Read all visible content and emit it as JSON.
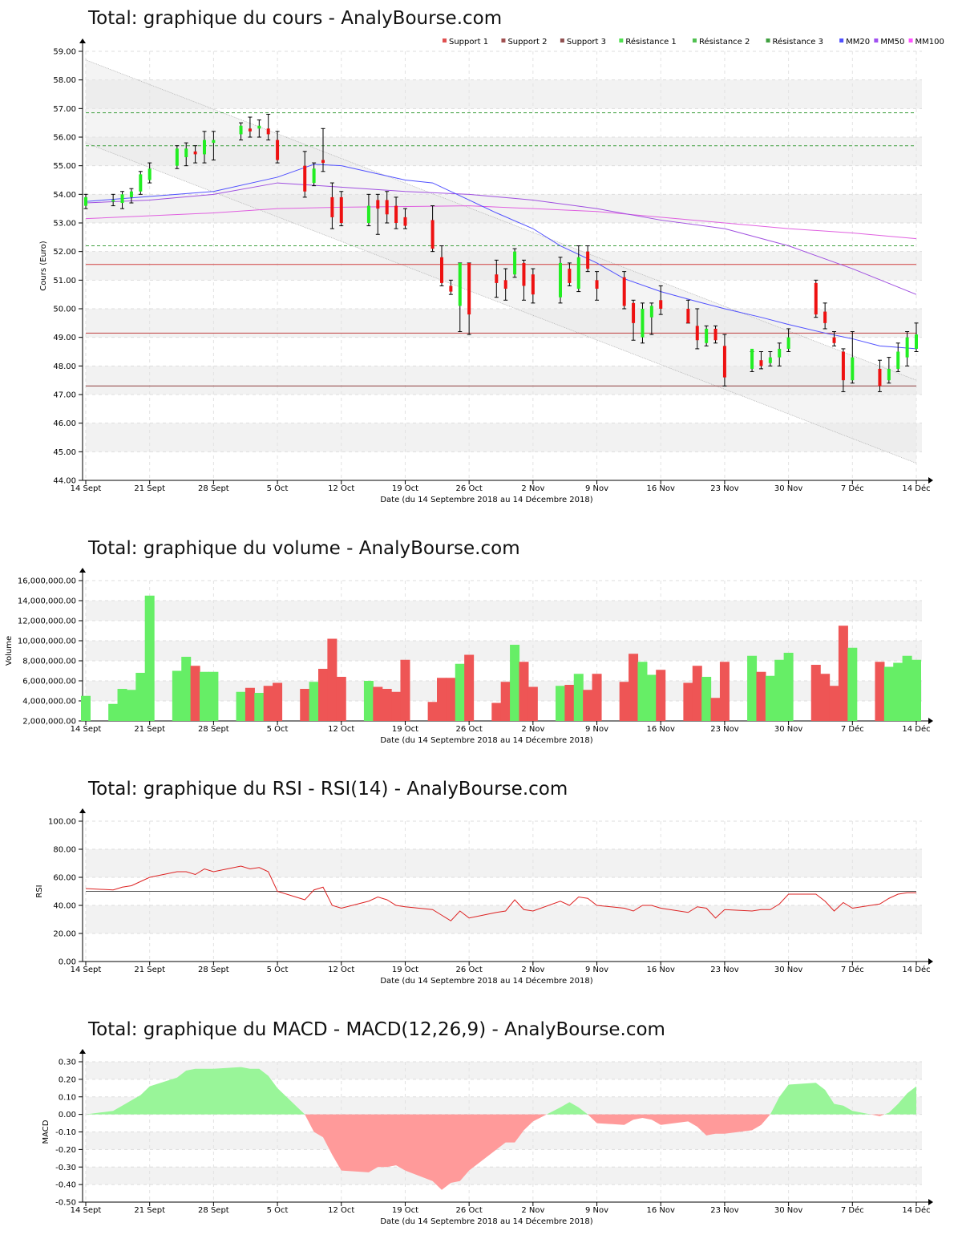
{
  "x_axis": {
    "ticks": [
      "14 Sept",
      "21 Sept",
      "28 Sept",
      "5 Oct",
      "12 Oct",
      "19 Oct",
      "26 Oct",
      "2 Nov",
      "9 Nov",
      "16 Nov",
      "23 Nov",
      "30 Nov",
      "7 Déc",
      "14 Déc"
    ],
    "label": "Date (du 14 Septembre 2018 au 14 Décembre 2018)",
    "day_range": [
      0,
      91
    ],
    "tick_days": [
      0,
      7,
      14,
      21,
      28,
      35,
      42,
      49,
      56,
      63,
      70,
      77,
      84,
      91
    ],
    "trading_days": [
      0,
      3,
      4,
      5,
      6,
      7,
      10,
      11,
      12,
      13,
      14,
      17,
      18,
      19,
      20,
      21,
      24,
      25,
      26,
      27,
      28,
      31,
      32,
      33,
      34,
      35,
      38,
      39,
      40,
      41,
      42,
      45,
      46,
      47,
      48,
      49,
      52,
      53,
      54,
      55,
      56,
      59,
      60,
      61,
      62,
      63,
      66,
      67,
      68,
      69,
      70,
      73,
      74,
      75,
      76,
      77,
      80,
      81,
      82,
      83,
      84,
      87,
      88,
      89,
      90,
      91
    ]
  },
  "charts": {
    "price": {
      "title": "Total: graphique du cours - AnalyBourse.com",
      "legend": [
        {
          "label": "Support 1",
          "color": "#e05050"
        },
        {
          "label": "Support 2",
          "color": "#a05050"
        },
        {
          "label": "Support 3",
          "color": "#905050"
        },
        {
          "label": "Résistance 1",
          "color": "#50e050"
        },
        {
          "label": "Résistance 2",
          "color": "#50c050"
        },
        {
          "label": "Résistance 3",
          "color": "#40a040"
        },
        {
          "label": "MM20",
          "color": "#5050ff"
        },
        {
          "label": "MM50",
          "color": "#a050f0"
        },
        {
          "label": "MM100",
          "color": "#ff50ff"
        }
      ]
    },
    "volume": {
      "title": "Total: graphique du volume - AnalyBourse.com"
    },
    "rsi": {
      "title": "Total: graphique du RSI - RSI(14) - AnalyBourse.com"
    },
    "macd": {
      "title": "Total: graphique du MACD - MACD(12,26,9) - AnalyBourse.com"
    }
  },
  "chart_data": [
    {
      "type": "candlestick",
      "title": "Total: graphique du cours - AnalyBourse.com",
      "ylabel": "Cours (Euro)",
      "xlabel": "Date (du 14 Septembre 2018 au 14 Décembre 2018)",
      "ylim": [
        44,
        59
      ],
      "yticks": [
        "44.00",
        "45.00",
        "46.00",
        "47.00",
        "48.00",
        "49.00",
        "50.00",
        "51.00",
        "52.00",
        "53.00",
        "54.00",
        "55.00",
        "56.00",
        "57.00",
        "58.00",
        "59.00"
      ],
      "ohlc": [
        [
          53.6,
          54.0,
          53.5,
          53.9
        ],
        [
          53.8,
          54.0,
          53.6,
          53.8
        ],
        [
          53.7,
          54.1,
          53.5,
          54.0
        ],
        [
          53.9,
          54.2,
          53.7,
          54.1
        ],
        [
          54.1,
          54.8,
          54.0,
          54.7
        ],
        [
          54.5,
          55.1,
          54.4,
          54.9
        ],
        [
          55.0,
          55.7,
          54.9,
          55.6
        ],
        [
          55.3,
          55.8,
          55.0,
          55.6
        ],
        [
          55.5,
          55.7,
          55.1,
          55.4
        ],
        [
          55.4,
          56.2,
          55.1,
          55.9
        ],
        [
          55.8,
          56.2,
          55.2,
          55.9
        ],
        [
          56.1,
          56.5,
          55.9,
          56.4
        ],
        [
          56.3,
          56.7,
          56.0,
          56.2
        ],
        [
          56.3,
          56.6,
          56.0,
          56.4
        ],
        [
          56.3,
          56.8,
          55.9,
          56.1
        ],
        [
          55.9,
          56.2,
          55.1,
          55.2
        ],
        [
          55.0,
          55.5,
          53.9,
          54.1
        ],
        [
          54.4,
          55.1,
          54.3,
          54.9
        ],
        [
          55.2,
          56.3,
          54.8,
          55.1
        ],
        [
          53.9,
          54.4,
          52.8,
          53.2
        ],
        [
          53.9,
          54.1,
          52.9,
          53.0
        ],
        [
          53.0,
          54.0,
          52.9,
          53.6
        ],
        [
          53.8,
          54.0,
          52.6,
          53.5
        ],
        [
          53.8,
          54.1,
          53.0,
          53.3
        ],
        [
          53.6,
          53.9,
          52.8,
          53.0
        ],
        [
          53.2,
          53.5,
          52.8,
          52.9
        ],
        [
          53.1,
          53.6,
          52.0,
          52.1
        ],
        [
          51.8,
          52.2,
          50.8,
          50.9
        ],
        [
          50.8,
          51.0,
          50.5,
          50.6
        ],
        [
          50.1,
          51.6,
          49.2,
          51.6
        ],
        [
          51.6,
          51.6,
          49.1,
          49.8
        ],
        [
          51.2,
          51.7,
          50.4,
          50.9
        ],
        [
          51.0,
          51.4,
          50.3,
          50.7
        ],
        [
          51.2,
          52.1,
          51.1,
          52.0
        ],
        [
          51.6,
          51.7,
          50.3,
          50.8
        ],
        [
          51.2,
          51.4,
          50.2,
          50.5
        ],
        [
          50.4,
          51.8,
          50.2,
          51.6
        ],
        [
          51.4,
          51.6,
          50.8,
          50.9
        ],
        [
          50.7,
          52.2,
          50.6,
          51.8
        ],
        [
          52.0,
          52.2,
          51.3,
          51.4
        ],
        [
          51.0,
          51.3,
          50.3,
          50.7
        ],
        [
          51.1,
          51.3,
          50.0,
          50.1
        ],
        [
          50.2,
          50.3,
          48.9,
          49.5
        ],
        [
          49.0,
          50.2,
          48.8,
          50.0
        ],
        [
          49.7,
          50.2,
          49.1,
          50.1
        ],
        [
          50.3,
          50.8,
          49.8,
          50.0
        ],
        [
          50.0,
          50.3,
          49.5,
          49.5
        ],
        [
          49.4,
          50.0,
          48.6,
          48.9
        ],
        [
          48.8,
          49.4,
          48.7,
          49.3
        ],
        [
          49.3,
          49.4,
          48.8,
          48.9
        ],
        [
          48.7,
          49.1,
          47.3,
          47.6
        ],
        [
          47.9,
          48.5,
          47.8,
          48.6
        ],
        [
          48.2,
          48.5,
          47.9,
          48.0
        ],
        [
          48.1,
          48.5,
          48.0,
          48.3
        ],
        [
          48.3,
          48.8,
          48.0,
          48.6
        ],
        [
          48.6,
          49.3,
          48.5,
          49.0
        ],
        [
          50.9,
          51.0,
          49.7,
          49.8
        ],
        [
          49.9,
          50.2,
          49.3,
          49.5
        ],
        [
          49.0,
          49.2,
          48.7,
          48.8
        ],
        [
          48.5,
          48.6,
          47.1,
          47.5
        ],
        [
          47.5,
          49.2,
          47.4,
          48.3
        ],
        [
          47.9,
          48.2,
          47.1,
          47.3
        ],
        [
          47.5,
          48.3,
          47.4,
          47.9
        ],
        [
          47.9,
          48.8,
          47.8,
          48.5
        ],
        [
          48.3,
          49.2,
          48.0,
          49.0
        ],
        [
          48.6,
          49.5,
          48.5,
          49.1
        ]
      ],
      "mm20": [
        [
          0,
          53.75
        ],
        [
          14,
          54.1
        ],
        [
          21,
          54.6
        ],
        [
          25,
          55.05
        ],
        [
          28,
          55.0
        ],
        [
          35,
          54.5
        ],
        [
          38,
          54.4
        ],
        [
          42,
          53.8
        ],
        [
          45,
          53.35
        ],
        [
          49,
          52.8
        ],
        [
          52,
          52.2
        ],
        [
          56,
          51.6
        ],
        [
          59,
          51.05
        ],
        [
          63,
          50.6
        ],
        [
          67,
          50.25
        ],
        [
          70,
          50.0
        ],
        [
          74,
          49.7
        ],
        [
          77,
          49.45
        ],
        [
          81,
          49.15
        ],
        [
          84,
          48.95
        ],
        [
          87,
          48.7
        ],
        [
          91,
          48.6
        ]
      ],
      "mm50": [
        [
          0,
          53.7
        ],
        [
          7,
          53.8
        ],
        [
          14,
          54.0
        ],
        [
          21,
          54.4
        ],
        [
          28,
          54.25
        ],
        [
          35,
          54.1
        ],
        [
          42,
          54.0
        ],
        [
          49,
          53.8
        ],
        [
          56,
          53.5
        ],
        [
          63,
          53.1
        ],
        [
          70,
          52.8
        ],
        [
          77,
          52.2
        ],
        [
          84,
          51.4
        ],
        [
          91,
          50.5
        ]
      ],
      "mm100": [
        [
          0,
          53.15
        ],
        [
          14,
          53.35
        ],
        [
          21,
          53.5
        ],
        [
          28,
          53.55
        ],
        [
          42,
          53.6
        ],
        [
          49,
          53.5
        ],
        [
          56,
          53.4
        ],
        [
          63,
          53.2
        ],
        [
          70,
          53.0
        ],
        [
          77,
          52.8
        ],
        [
          84,
          52.65
        ],
        [
          91,
          52.45
        ]
      ],
      "support_lines": [
        51.55,
        49.15,
        47.3
      ],
      "resistance_lines": [
        56.85,
        55.7,
        52.2
      ],
      "channel": {
        "upper": [
          [
            0,
            58.7
          ],
          [
            91,
            47.5
          ]
        ],
        "lower": [
          [
            0,
            55.8
          ],
          [
            91,
            44.6
          ]
        ]
      }
    },
    {
      "type": "bar",
      "title": "Total: graphique du volume - AnalyBourse.com",
      "ylabel": "Volume",
      "xlabel": "Date (du 14 Septembre 2018 au 14 Décembre 2018)",
      "ylim": [
        2000000,
        16000000
      ],
      "yticks": [
        "2,000,000.00",
        "4,000,000.00",
        "6,000,000.00",
        "8,000,000.00",
        "10,000,000.00",
        "12,000,000.00",
        "14,000,000.00",
        "16,000,000.00"
      ],
      "values": [
        4500000,
        3700000,
        5200000,
        5100000,
        6800000,
        14500000,
        7000000,
        8400000,
        7500000,
        6900000,
        6900000,
        4900000,
        5300000,
        4800000,
        5500000,
        5800000,
        5200000,
        5900000,
        7200000,
        10200000,
        6400000,
        6000000,
        5400000,
        5200000,
        4900000,
        8100000,
        3900000,
        6300000,
        6300000,
        7700000,
        8600000,
        3800000,
        5900000,
        9600000,
        7900000,
        5400000,
        5500000,
        5600000,
        6700000,
        5100000,
        6700000,
        5900000,
        8700000,
        7900000,
        6600000,
        7100000,
        5800000,
        7500000,
        6400000,
        4300000,
        7900000,
        8500000,
        6900000,
        6500000,
        8100000,
        8800000,
        7600000,
        6700000,
        5500000,
        11500000,
        9300000,
        7900000,
        7400000,
        7800000,
        8500000,
        8100000
      ]
    },
    {
      "type": "line",
      "title": "Total: graphique du RSI - RSI(14) - AnalyBourse.com",
      "ylabel": "RSI",
      "xlabel": "Date (du 14 Septembre 2018 au 14 Décembre 2018)",
      "ylim": [
        0,
        100
      ],
      "yticks": [
        "0.00",
        "20.00",
        "40.00",
        "60.00",
        "80.00",
        "100.00"
      ],
      "reference_line": 50,
      "values": [
        52,
        51,
        53,
        54,
        57,
        60,
        64,
        64,
        62,
        66,
        64,
        68,
        66,
        67,
        64,
        50,
        44,
        51,
        53,
        40,
        38,
        43,
        46,
        44,
        40,
        39,
        37,
        33,
        29,
        36,
        31,
        35,
        36,
        44,
        37,
        36,
        43,
        40,
        46,
        45,
        40,
        38,
        36,
        40,
        40,
        38,
        35,
        39,
        38,
        31,
        37,
        36,
        37,
        37,
        41,
        48,
        48,
        43,
        36,
        42,
        38,
        41,
        45,
        48,
        49,
        49
      ]
    },
    {
      "type": "area",
      "title": "Total: graphique du MACD - MACD(12,26,9) - AnalyBourse.com",
      "ylabel": "MACD",
      "xlabel": "Date (du 14 Septembre 2018 au 14 Décembre 2018)",
      "ylim": [
        -0.5,
        0.3
      ],
      "yticks": [
        "-0.50",
        "-0.40",
        "-0.30",
        "-0.20",
        "-0.10",
        "0.00",
        "0.10",
        "0.20",
        "0.30"
      ],
      "values": [
        0.0,
        0.02,
        0.05,
        0.08,
        0.11,
        0.16,
        0.21,
        0.25,
        0.26,
        0.26,
        0.26,
        0.27,
        0.26,
        0.26,
        0.22,
        0.15,
        0.0,
        -0.1,
        -0.13,
        -0.23,
        -0.32,
        -0.33,
        -0.3,
        -0.3,
        -0.29,
        -0.32,
        -0.38,
        -0.43,
        -0.39,
        -0.38,
        -0.32,
        -0.2,
        -0.16,
        -0.16,
        -0.09,
        -0.04,
        0.04,
        0.07,
        0.04,
        0.0,
        -0.05,
        -0.06,
        -0.03,
        -0.02,
        -0.03,
        -0.06,
        -0.04,
        -0.07,
        -0.12,
        -0.11,
        -0.11,
        -0.09,
        -0.06,
        0.0,
        0.1,
        0.17,
        0.18,
        0.14,
        0.06,
        0.05,
        0.02,
        -0.01,
        0.01,
        0.06,
        0.12,
        0.16
      ]
    }
  ]
}
